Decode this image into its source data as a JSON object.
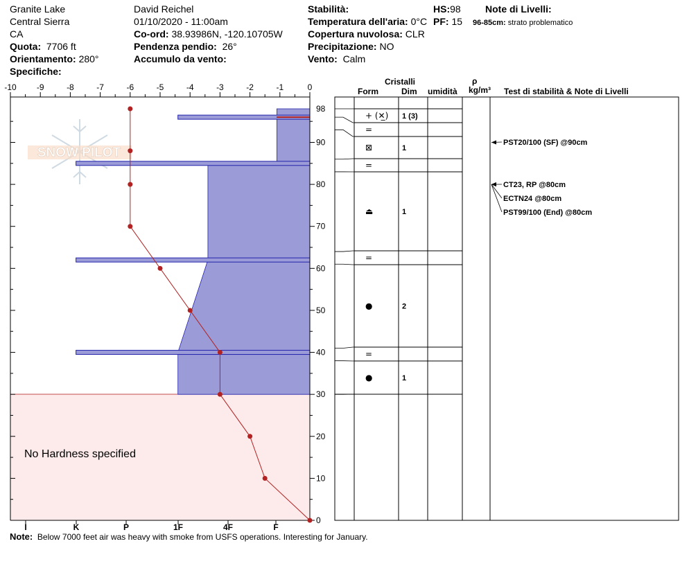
{
  "header": {
    "location": "Granite Lake",
    "region": "Central Sierra",
    "state": "CA",
    "elevation_label": "Quota:",
    "elevation": "7706 ft",
    "aspect_label": "Orientamento:",
    "aspect": "280°",
    "specifics_label": "Specifiche:",
    "observer": "David Reichel",
    "datetime": "01/10/2020 - 11:00am",
    "coords_label": "Co-ord:",
    "coords": "38.93986N, -120.10705W",
    "slope_label": "Pendenza pendio:",
    "slope": "26°",
    "wind_loading_label": "Accumulo da vento:",
    "stability_label": "Stabilità:",
    "air_temp_label": "Temperatura dell'aria:",
    "air_temp": "0°C",
    "cloud_label": "Copertura nuvolosa:",
    "cloud": "CLR",
    "precip_label": "Precipitazione:",
    "precip": "NO",
    "wind_label": "Vento:",
    "wind": "Calm",
    "hs_label": "HS:",
    "hs": "98",
    "pf_label": "PF:",
    "pf": "15",
    "layer_notes_label": "Note di Livelli:",
    "layer_note_range": "96-85cm:",
    "layer_note_text": "strato problematico"
  },
  "watermark": "SNOW PILOT",
  "no_hardness_text": "No Hardness specified",
  "note_label": "Note:",
  "note_text": "Below 7000 feet air was heavy with smoke from USFS operations. Interesting for January.",
  "table_headers": {
    "crystals": "Cristalli",
    "form": "Form",
    "size": "Dim",
    "moisture": "umidità",
    "rho": "ρ",
    "density_unit": "kg/m³",
    "tests": "Test di stabilità & Note di Livelli"
  },
  "colors": {
    "hardness_fill": "#9b9bd8",
    "hardness_stroke": "#2222aa",
    "temp_line": "#b22222",
    "no_hardness_bg": "#fdeaea"
  },
  "chart_data": {
    "type": "line",
    "temperature_axis": {
      "ticks": [
        "-10",
        "-9",
        "-8",
        "-7",
        "-6",
        "-5",
        "-4",
        "-3",
        "-2",
        "-1",
        "0"
      ],
      "range": [
        -10,
        0
      ]
    },
    "hardness_axis": {
      "ticks": [
        "I",
        "K",
        "P",
        "1F",
        "4F",
        "F"
      ],
      "note": "hand hardness scale, harder toward left"
    },
    "depth_axis": {
      "range": [
        0,
        98
      ],
      "ticks": [
        "0",
        "10",
        "20",
        "30",
        "40",
        "50",
        "60",
        "70",
        "80",
        "90",
        "98"
      ]
    },
    "temperature_profile": [
      {
        "height": 98,
        "temp": -6
      },
      {
        "height": 88,
        "temp": -6
      },
      {
        "height": 80,
        "temp": -6
      },
      {
        "height": 70,
        "temp": -6
      },
      {
        "height": 60,
        "temp": -5
      },
      {
        "height": 50,
        "temp": -4
      },
      {
        "height": 40,
        "temp": -3
      },
      {
        "height": 30,
        "temp": -3
      },
      {
        "height": 20,
        "temp": -2
      },
      {
        "height": 10,
        "temp": -1.5
      },
      {
        "height": 0,
        "temp": 0
      }
    ],
    "hardness_profile": [
      {
        "height": 98,
        "hardness_scale": 0.55
      },
      {
        "height": 96,
        "hardness_scale": 0.55
      },
      {
        "height": 96,
        "hardness_scale": 0.55
      },
      {
        "height": 85,
        "hardness_scale": 0.55
      },
      {
        "height": 85,
        "hardness_scale": 1.7
      },
      {
        "height": 62,
        "hardness_scale": 1.7
      },
      {
        "height": 40,
        "hardness_scale": 2.2
      },
      {
        "height": 30,
        "hardness_scale": 2.2
      }
    ],
    "thin_layers": [
      {
        "height": 96,
        "hardness_scale": 2.2
      },
      {
        "height": 85,
        "hardness_scale": 3.9
      },
      {
        "height": 62,
        "hardness_scale": 3.9
      },
      {
        "height": 40,
        "hardness_scale": 3.9
      }
    ],
    "layers": [
      {
        "top": 98,
        "bottom": 96,
        "form": "+ (✕̲)",
        "size": "1 (3)"
      },
      {
        "top": 96,
        "bottom": 93,
        "form": "=",
        "size": ""
      },
      {
        "top": 93,
        "bottom": 86,
        "form": "⊠",
        "size": "1"
      },
      {
        "top": 86,
        "bottom": 83,
        "form": "=",
        "size": ""
      },
      {
        "top": 83,
        "bottom": 64,
        "form": "⏏",
        "size": "1"
      },
      {
        "top": 64,
        "bottom": 61,
        "form": "=",
        "size": ""
      },
      {
        "top": 61,
        "bottom": 41,
        "form": "●",
        "size": "2"
      },
      {
        "top": 41,
        "bottom": 38,
        "form": "=",
        "size": ""
      },
      {
        "top": 38,
        "bottom": 30,
        "form": "●",
        "size": "1"
      }
    ],
    "stability_tests": [
      {
        "height": 90,
        "text": "PST20/100 (SF) @90cm"
      },
      {
        "height": 80,
        "text": "CT23, RP @80cm"
      },
      {
        "height": 80,
        "text": "ECTN24 @80cm"
      },
      {
        "height": 80,
        "text": "PST99/100 (End) @80cm"
      }
    ]
  }
}
